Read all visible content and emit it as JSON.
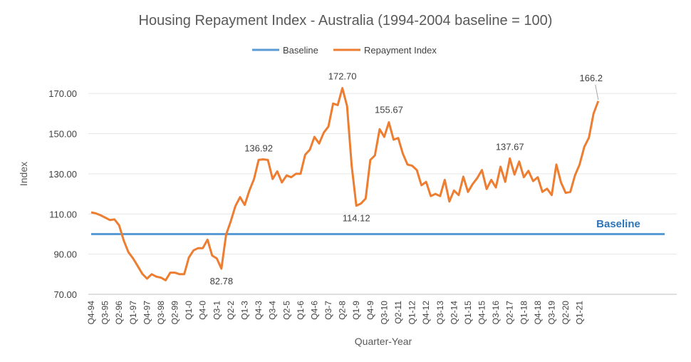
{
  "chart_data": {
    "type": "line",
    "title": "Housing Repayment Index - Australia (1994-2004 baseline = 100)",
    "xlabel": "Quarter-Year",
    "ylabel": "Index",
    "ylim": [
      70,
      180
    ],
    "y_ticks": [
      "70.00",
      "90.00",
      "110.00",
      "130.00",
      "150.00",
      "170.00"
    ],
    "grid": true,
    "legend_position": "top",
    "x_tick_labels": [
      "Q4-94",
      "Q3-95",
      "Q2-96",
      "Q1-97",
      "Q4-97",
      "Q3-98",
      "Q2-99",
      "Q1-0",
      "Q4-0",
      "Q3-1",
      "Q2-2",
      "Q1-3",
      "Q4-3",
      "Q3-4",
      "Q2-5",
      "Q1-6",
      "Q4-6",
      "Q3-7",
      "Q2-8",
      "Q1-9",
      "Q4-9",
      "Q3-10",
      "Q2-11",
      "Q1-12",
      "Q4-12",
      "Q3-13",
      "Q2-14",
      "Q1-15",
      "Q4-15",
      "Q3-16",
      "Q2-17",
      "Q1-18",
      "Q4-18",
      "Q3-19",
      "Q2-20",
      "Q1-21"
    ],
    "series": [
      {
        "name": "Baseline",
        "color": "#5b9bd5",
        "values": [
          100,
          100,
          100,
          100,
          100,
          100,
          100,
          100,
          100,
          100,
          100,
          100,
          100,
          100,
          100,
          100,
          100,
          100,
          100,
          100,
          100,
          100,
          100,
          100,
          100,
          100,
          100,
          100,
          100,
          100,
          100,
          100,
          100,
          100,
          100,
          100,
          100,
          100,
          100,
          100,
          100,
          100,
          100,
          100,
          100,
          100,
          100,
          100,
          100,
          100,
          100,
          100,
          100,
          100,
          100,
          100,
          100,
          100,
          100,
          100,
          100,
          100,
          100,
          100,
          100,
          100,
          100,
          100,
          100,
          100,
          100,
          100,
          100,
          100,
          100,
          100,
          100,
          100,
          100,
          100,
          100,
          100,
          100,
          100,
          100,
          100,
          100,
          100,
          100,
          100,
          100,
          100,
          100,
          100,
          100,
          100,
          100,
          100,
          100,
          100,
          100,
          100,
          100,
          100,
          100,
          100,
          100,
          100,
          100,
          100,
          100,
          100,
          100,
          100,
          100,
          100,
          100,
          100,
          100,
          100,
          100,
          100,
          100,
          100,
          100,
          100,
          100,
          100,
          100,
          100,
          100,
          100,
          100,
          100,
          100,
          100,
          100,
          100,
          100,
          100,
          100,
          100,
          100,
          100
        ]
      },
      {
        "name": "Repayment Index",
        "color": "#ed7d31",
        "values": [
          110.8,
          110.3,
          109.4,
          108.2,
          107.0,
          107.3,
          104.4,
          96.8,
          91.0,
          87.9,
          84.1,
          80.2,
          77.8,
          80.0,
          78.8,
          78.3,
          77.0,
          80.8,
          80.8,
          80.0,
          80.0,
          88.3,
          91.9,
          93.0,
          93.0,
          97.2,
          89.3,
          87.9,
          82.78,
          99.7,
          106.3,
          113.9,
          118.4,
          114.5,
          121.6,
          127.4,
          136.92,
          137.2,
          136.9,
          127.4,
          131.2,
          125.7,
          129.2,
          128.3,
          130.0,
          130.0,
          139.5,
          142.0,
          148.4,
          145.1,
          150.5,
          153.5,
          165.0,
          164.2,
          172.7,
          163.7,
          133.9,
          114.12,
          115.2,
          117.7,
          136.9,
          139.2,
          152.2,
          148.4,
          155.67,
          147.0,
          147.8,
          140.0,
          134.6,
          134.0,
          131.9,
          124.3,
          126.0,
          118.9,
          120.0,
          118.9,
          127.0,
          116.2,
          121.7,
          119.4,
          128.6,
          121.0,
          124.9,
          127.9,
          131.9,
          122.4,
          127.0,
          123.2,
          133.5,
          126.0,
          137.67,
          129.6,
          136.1,
          128.3,
          131.5,
          126.4,
          128.3,
          121.0,
          122.6,
          119.4,
          134.6,
          125.7,
          120.5,
          121.0,
          129.2,
          134.6,
          143.4,
          148.0,
          160.0,
          166.2
        ]
      }
    ],
    "annotations": [
      {
        "label": "82.78",
        "index": 28,
        "value": 82.78
      },
      {
        "label": "136.92",
        "index": 36,
        "value": 136.92
      },
      {
        "label": "172.70",
        "index": 54,
        "value": 172.7
      },
      {
        "label": "114.12",
        "index": 57,
        "value": 114.12
      },
      {
        "label": "155.67",
        "index": 64,
        "value": 155.67
      },
      {
        "label": "137.67",
        "index": 90,
        "value": 137.67
      },
      {
        "label": "166.2",
        "index": 109,
        "value": 166.2
      }
    ],
    "baseline_label": "Baseline"
  }
}
